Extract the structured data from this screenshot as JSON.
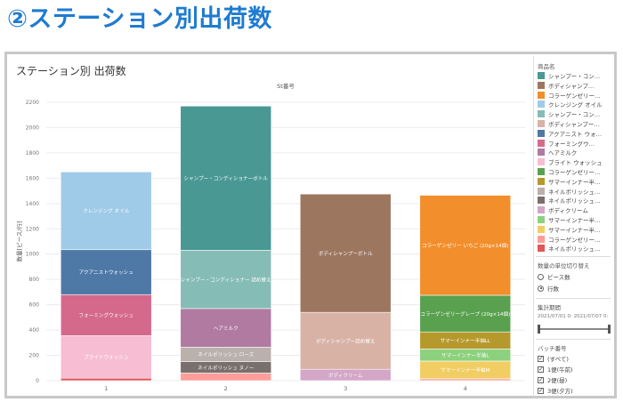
{
  "page": {
    "heading": "②ステーション別出荷数"
  },
  "chart_data": {
    "type": "bar",
    "stacked": true,
    "title": "ステーション別 出荷数",
    "xlabel": "St番号",
    "ylabel": "数量[ピース/行]",
    "categories": [
      "1",
      "2",
      "3",
      "4"
    ],
    "ylim": [
      0,
      2200
    ],
    "yticks": [
      0,
      200,
      400,
      600,
      800,
      1000,
      1200,
      1400,
      1600,
      1800,
      2000,
      2200
    ],
    "ytick_labels": [
      "0",
      "200",
      "400",
      "600",
      "800",
      "1000",
      "1200",
      "1400",
      "1600",
      "1800",
      "2000",
      "2200"
    ],
    "grid": true,
    "legend": "right",
    "stacks": [
      {
        "category": "1",
        "segments": [
          {
            "label": "",
            "value": 20,
            "color": "#e15759"
          },
          {
            "label": "ブライトウォッシュ",
            "value": 335,
            "color": "#f7bdd2"
          },
          {
            "label": "フォーミングウォッシュ",
            "value": 325,
            "color": "#d5698c"
          },
          {
            "label": "アクアニストウォッシュ",
            "value": 355,
            "color": "#4e79a7"
          },
          {
            "label": "クレンジング オイル",
            "value": 615,
            "color": "#a0cbe8"
          }
        ]
      },
      {
        "category": "2",
        "segments": [
          {
            "label": "",
            "value": 60,
            "color": "#ff9d9a"
          },
          {
            "label": "ネイルポリッシュ ヌノー",
            "value": 90,
            "color": "#79706e"
          },
          {
            "label": "ネイルポリッシュ ローズ",
            "value": 115,
            "color": "#bab0ac"
          },
          {
            "label": "ヘアミルク",
            "value": 305,
            "color": "#b07aa1"
          },
          {
            "label": "シャンプー・コンディショナー 詰め替え",
            "value": 460,
            "color": "#86bcb6"
          },
          {
            "label": "シャンプー・コンディショナーボトル",
            "value": 1140,
            "color": "#499894"
          }
        ]
      },
      {
        "category": "3",
        "segments": [
          {
            "label": "ボディクリーム",
            "value": 90,
            "color": "#d4a6c8"
          },
          {
            "label": "ボディシャンプー詰め替え",
            "value": 450,
            "color": "#d9b2a6"
          },
          {
            "label": "ボディシャンプーボトル",
            "value": 935,
            "color": "#9d7660"
          }
        ]
      },
      {
        "category": "4",
        "segments": [
          {
            "label": "",
            "value": 15,
            "color": "#ff9d9a"
          },
          {
            "label": "サマーインナー半袖M",
            "value": 140,
            "color": "#f1ce63"
          },
          {
            "label": "サマーインナー半袖L",
            "value": 95,
            "color": "#8cd17d"
          },
          {
            "label": "サマーインナー半袖LL",
            "value": 135,
            "color": "#b6992d"
          },
          {
            "label": "コラーゲンゼリーグレープ (20g×14個)",
            "value": 290,
            "color": "#59a14f"
          },
          {
            "label": "コラーゲンゼリー いちご (20g×14個)",
            "value": 790,
            "color": "#f28e2b"
          }
        ]
      }
    ]
  },
  "legend": {
    "title": "商品名",
    "items": [
      {
        "label": "シャンプー・コン…",
        "color": "#499894"
      },
      {
        "label": "ボディシャンプ…",
        "color": "#9d7660"
      },
      {
        "label": "コラーゲンゼリー…",
        "color": "#f28e2b"
      },
      {
        "label": "クレンジング オイル",
        "color": "#a0cbe8"
      },
      {
        "label": "シャンプー・コン…",
        "color": "#86bcb6"
      },
      {
        "label": "ボディシャンプー…",
        "color": "#d9b2a6"
      },
      {
        "label": "アクアニスト ウォ…",
        "color": "#4e79a7"
      },
      {
        "label": "フォーミングウ…",
        "color": "#d5698c"
      },
      {
        "label": "ヘアミルク",
        "color": "#b07aa1"
      },
      {
        "label": "ブライト ウォッシュ",
        "color": "#f7bdd2"
      },
      {
        "label": "コラーゲンゼリー…",
        "color": "#59a14f"
      },
      {
        "label": "サマーインナー半…",
        "color": "#b6992d"
      },
      {
        "label": "ネイルポリッシュ…",
        "color": "#bab0ac"
      },
      {
        "label": "ネイルポリッシュ…",
        "color": "#79706e"
      },
      {
        "label": "ボディクリーム",
        "color": "#d4a6c8"
      },
      {
        "label": "サマーインナー半…",
        "color": "#8cd17d"
      },
      {
        "label": "サマーインナー半…",
        "color": "#f1ce63"
      },
      {
        "label": "コラーゲンゼリー…",
        "color": "#ff9d9a"
      },
      {
        "label": "ネイルポリッシュ…",
        "color": "#e15759"
      }
    ]
  },
  "unit_switch": {
    "title": "数量の単位切り替え",
    "options": [
      {
        "label": "ピース数",
        "selected": false
      },
      {
        "label": "行数",
        "selected": true
      }
    ]
  },
  "period": {
    "title": "集計期間",
    "start": "2021/07/01 0:",
    "end": "2021/07/07 0:",
    "range_fraction": [
      0,
      1
    ]
  },
  "batch": {
    "title": "バッチ番号",
    "options": [
      {
        "label": "(すべて)",
        "checked": true
      },
      {
        "label": "1便(午前)",
        "checked": true
      },
      {
        "label": "2便(昼)",
        "checked": true
      },
      {
        "label": "3便(夕方)",
        "checked": true
      }
    ]
  }
}
